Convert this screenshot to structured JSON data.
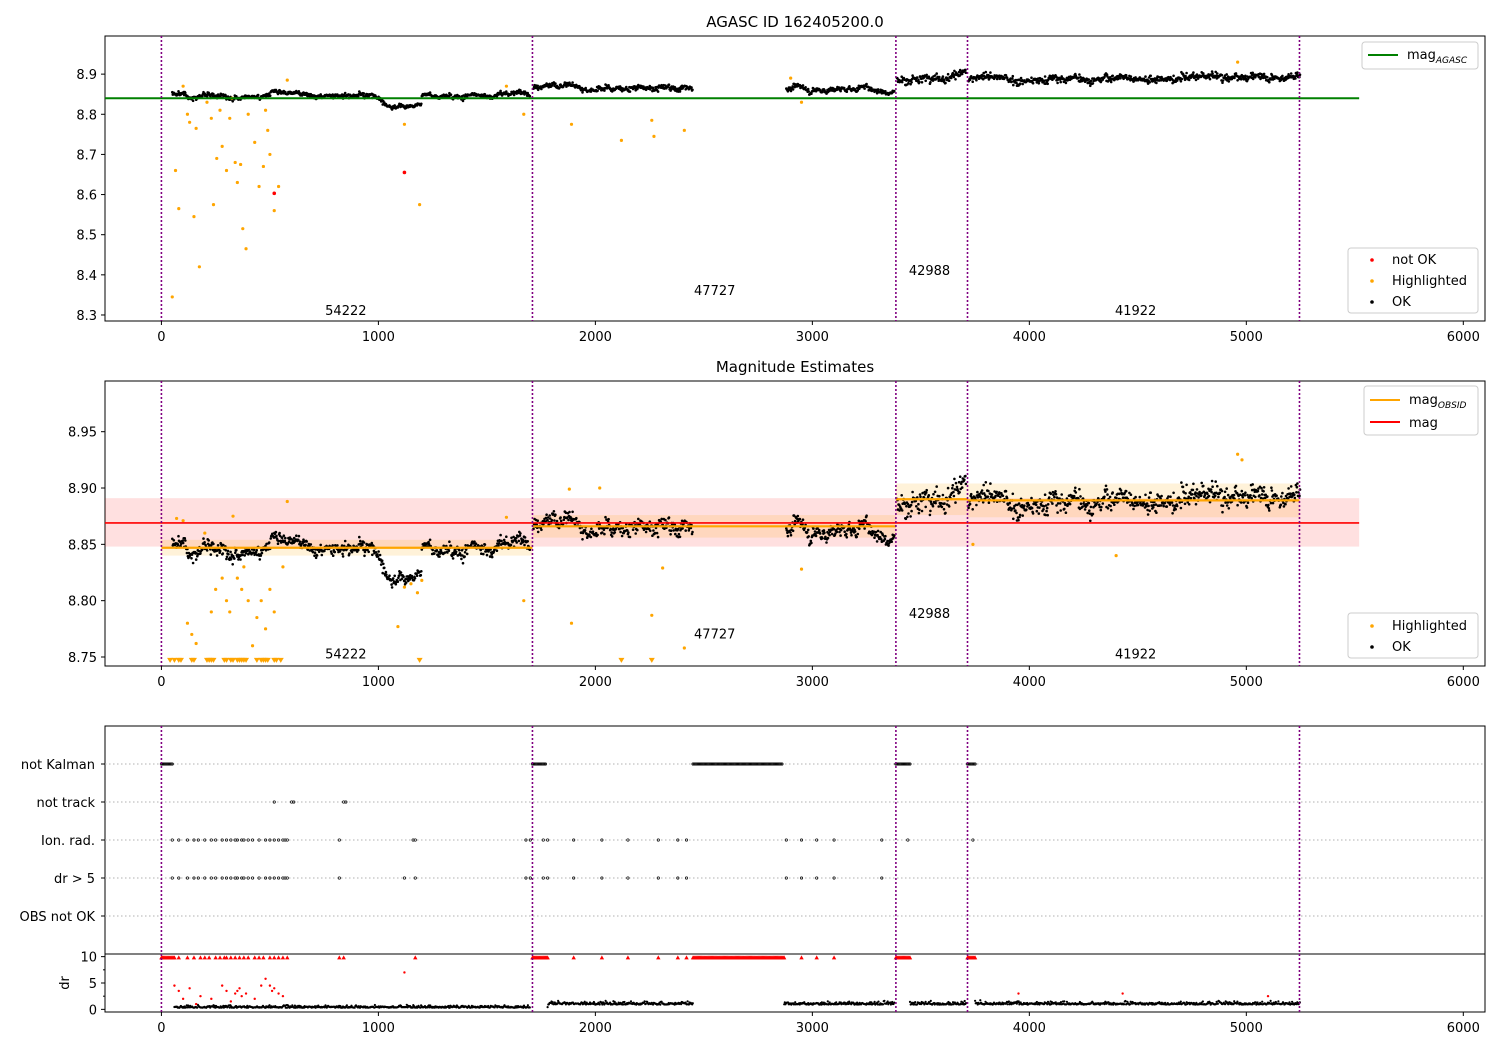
{
  "x_ticks": [
    0,
    1000,
    2000,
    3000,
    4000,
    5000,
    6000
  ],
  "x_range": [
    -260,
    6100
  ],
  "obs_boundaries": [
    0,
    1710,
    3385,
    3715,
    5245
  ],
  "colors": {
    "ok": "#000000",
    "highlighted": "#ffa500",
    "not_ok": "#ff0000",
    "agasc": "#008000",
    "obsid": "#ffa500",
    "mag": "#ff0000",
    "boundary": "#800080"
  },
  "chart_data": [
    {
      "type": "scatter",
      "title": "AGASC ID 162405200.0",
      "ylim": [
        8.285,
        8.995
      ],
      "y_ticks": [
        "8.3",
        "8.4",
        "8.5",
        "8.6",
        "8.7",
        "8.8",
        "8.9"
      ],
      "y_tick_values": [
        8.3,
        8.4,
        8.5,
        8.6,
        8.7,
        8.8,
        8.9
      ],
      "reference_line": {
        "name": "mag_AGASC",
        "value": 8.84,
        "x": [
          -260,
          5520
        ]
      },
      "legend_lines": [
        {
          "label": "mag",
          "sub": "AGASC",
          "color": "#008000"
        }
      ],
      "legend_points": [
        {
          "label": "not OK",
          "color": "#ff0000"
        },
        {
          "label": "Highlighted",
          "color": "#ffa500"
        },
        {
          "label": "OK",
          "color": "#000000"
        }
      ],
      "obsids": [
        {
          "label": "54222",
          "x": 850,
          "y": 8.31
        },
        {
          "label": "47727",
          "x": 2550,
          "y": 8.36
        },
        {
          "label": "42988",
          "x": 3540,
          "y": 8.41
        },
        {
          "label": "41922",
          "x": 4490,
          "y": 8.31
        }
      ],
      "segments": [
        {
          "x": [
            50,
            1020
          ],
          "y": [
            8.852,
            8.848
          ],
          "sd": 0.007
        },
        {
          "x": [
            1020,
            1200
          ],
          "y": [
            8.826,
            8.823
          ],
          "sd": 0.006
        },
        {
          "x": [
            1200,
            1700
          ],
          "y": [
            8.845,
            8.852
          ],
          "sd": 0.007
        },
        {
          "x": [
            1715,
            2450
          ],
          "y": [
            8.868,
            8.866
          ],
          "sd": 0.008
        },
        {
          "x": [
            2880,
            3380
          ],
          "y": [
            8.863,
            8.862
          ],
          "sd": 0.008
        },
        {
          "x": [
            3390,
            3710
          ],
          "y": [
            8.888,
            8.905
          ],
          "sd": 0.014
        },
        {
          "x": [
            3720,
            5250
          ],
          "y": [
            8.885,
            8.895
          ],
          "sd": 0.012
        }
      ],
      "highlighted": [
        [
          50,
          8.345
        ],
        [
          65,
          8.66
        ],
        [
          80,
          8.565
        ],
        [
          100,
          8.87
        ],
        [
          120,
          8.8
        ],
        [
          130,
          8.78
        ],
        [
          150,
          8.545
        ],
        [
          160,
          8.765
        ],
        [
          175,
          8.42
        ],
        [
          210,
          8.83
        ],
        [
          230,
          8.79
        ],
        [
          240,
          8.575
        ],
        [
          255,
          8.69
        ],
        [
          270,
          8.81
        ],
        [
          280,
          8.72
        ],
        [
          300,
          8.66
        ],
        [
          315,
          8.79
        ],
        [
          325,
          8.84
        ],
        [
          340,
          8.68
        ],
        [
          350,
          8.63
        ],
        [
          365,
          8.675
        ],
        [
          375,
          8.515
        ],
        [
          390,
          8.465
        ],
        [
          400,
          8.8
        ],
        [
          430,
          8.73
        ],
        [
          450,
          8.62
        ],
        [
          470,
          8.67
        ],
        [
          480,
          8.81
        ],
        [
          490,
          8.76
        ],
        [
          500,
          8.7
        ],
        [
          520,
          8.56
        ],
        [
          540,
          8.62
        ],
        [
          580,
          8.885
        ],
        [
          1120,
          8.775
        ],
        [
          1190,
          8.575
        ],
        [
          1590,
          8.87
        ],
        [
          1670,
          8.8
        ],
        [
          1890,
          8.775
        ],
        [
          2120,
          8.735
        ],
        [
          2260,
          8.785
        ],
        [
          2270,
          8.745
        ],
        [
          2410,
          8.76
        ],
        [
          2900,
          8.89
        ],
        [
          2950,
          8.83
        ],
        [
          4960,
          8.93
        ]
      ],
      "not_ok": [
        [
          520,
          8.603
        ],
        [
          1120,
          8.655
        ]
      ]
    },
    {
      "type": "scatter",
      "title": "Magnitude Estimates",
      "ylim": [
        8.742,
        8.995
      ],
      "y_ticks": [
        "8.75",
        "8.80",
        "8.85",
        "8.90",
        "8.95"
      ],
      "y_tick_values": [
        8.75,
        8.8,
        8.85,
        8.9,
        8.95
      ],
      "mag_line": {
        "value": 8.869,
        "band": [
          8.848,
          8.891
        ],
        "x": [
          -260,
          5520
        ]
      },
      "obsid_segments": [
        {
          "x": [
            0,
            1710
          ],
          "y": 8.847,
          "band": [
            8.84,
            8.854
          ]
        },
        {
          "x": [
            1710,
            3385
          ],
          "y": 8.866,
          "band": [
            8.856,
            8.876
          ]
        },
        {
          "x": [
            3385,
            3715
          ],
          "y": 8.89,
          "band": [
            8.876,
            8.904
          ]
        },
        {
          "x": [
            3715,
            5245
          ],
          "y": 8.889,
          "band": [
            8.874,
            8.904
          ]
        }
      ],
      "legend_lines": [
        {
          "label": "mag",
          "sub": "OBSID",
          "color": "#ffa500"
        },
        {
          "label": "mag",
          "sub": "",
          "color": "#ff0000"
        }
      ],
      "legend_points": [
        {
          "label": "Highlighted",
          "color": "#ffa500"
        },
        {
          "label": "OK",
          "color": "#000000"
        }
      ],
      "obsids": [
        {
          "label": "54222",
          "x": 850,
          "y": 8.752
        },
        {
          "label": "47727",
          "x": 2550,
          "y": 8.77
        },
        {
          "label": "42988",
          "x": 3540,
          "y": 8.788
        },
        {
          "label": "41922",
          "x": 4490,
          "y": 8.752
        }
      ],
      "highlighted": [
        [
          70,
          8.873
        ],
        [
          100,
          8.871
        ],
        [
          120,
          8.78
        ],
        [
          140,
          8.77
        ],
        [
          160,
          8.762
        ],
        [
          200,
          8.86
        ],
        [
          230,
          8.79
        ],
        [
          250,
          8.81
        ],
        [
          280,
          8.82
        ],
        [
          300,
          8.8
        ],
        [
          315,
          8.79
        ],
        [
          330,
          8.875
        ],
        [
          350,
          8.82
        ],
        [
          370,
          8.81
        ],
        [
          380,
          8.83
        ],
        [
          400,
          8.8
        ],
        [
          420,
          8.76
        ],
        [
          440,
          8.785
        ],
        [
          460,
          8.8
        ],
        [
          480,
          8.775
        ],
        [
          500,
          8.81
        ],
        [
          520,
          8.79
        ],
        [
          560,
          8.83
        ],
        [
          580,
          8.888
        ],
        [
          1090,
          8.777
        ],
        [
          1120,
          8.812
        ],
        [
          1150,
          8.815
        ],
        [
          1180,
          8.807
        ],
        [
          1200,
          8.818
        ],
        [
          1590,
          8.874
        ],
        [
          1670,
          8.8
        ],
        [
          1880,
          8.899
        ],
        [
          1890,
          8.78
        ],
        [
          2020,
          8.9
        ],
        [
          2260,
          8.787
        ],
        [
          2310,
          8.829
        ],
        [
          2410,
          8.758
        ],
        [
          2950,
          8.828
        ],
        [
          3740,
          8.85
        ],
        [
          4400,
          8.84
        ],
        [
          4960,
          8.93
        ],
        [
          4980,
          8.925
        ]
      ],
      "clipped": [
        40,
        60,
        80,
        90,
        140,
        150,
        210,
        220,
        230,
        240,
        290,
        300,
        320,
        330,
        350,
        360,
        370,
        380,
        390,
        440,
        460,
        470,
        480,
        490,
        520,
        530,
        550,
        1190,
        2120,
        2260
      ]
    },
    {
      "type": "scatter",
      "title": "",
      "categories": [
        "not Kalman",
        "not track",
        "Ion. rad.",
        "dr > 5",
        "OBS not OK"
      ],
      "flags": [
        {
          "row": 0,
          "ranges": [
            [
              0,
              50
            ],
            [
              1710,
              1770
            ],
            [
              2450,
              2860
            ],
            [
              3385,
              3450
            ],
            [
              3715,
              3750
            ]
          ],
          "points": []
        },
        {
          "row": 1,
          "ranges": [],
          "points": [
            520,
            600,
            610,
            840,
            850
          ]
        },
        {
          "row": 2,
          "ranges": [],
          "points": [
            50,
            80,
            120,
            150,
            170,
            200,
            230,
            250,
            280,
            300,
            320,
            340,
            350,
            370,
            380,
            400,
            420,
            450,
            480,
            500,
            520,
            540,
            560,
            570,
            580,
            820,
            1160,
            1170,
            1680,
            1700,
            1760,
            1780,
            1900,
            2030,
            2150,
            2290,
            2380,
            2420,
            2880,
            2950,
            3020,
            3100,
            3320,
            3440,
            3740
          ]
        },
        {
          "row": 3,
          "ranges": [],
          "points": [
            50,
            80,
            120,
            150,
            170,
            200,
            230,
            250,
            280,
            300,
            320,
            340,
            350,
            370,
            380,
            400,
            420,
            450,
            480,
            500,
            520,
            540,
            560,
            570,
            580,
            820,
            1120,
            1170,
            1680,
            1700,
            1760,
            1780,
            1900,
            2030,
            2150,
            2290,
            2380,
            2420,
            2880,
            2950,
            3020,
            3100,
            3320
          ]
        },
        {
          "row": 4,
          "ranges": [],
          "points": []
        }
      ]
    },
    {
      "type": "scatter",
      "title": "",
      "ylabel": "dr",
      "ylim": [
        -0.5,
        10.5
      ],
      "y_ticks": [
        "0",
        "5",
        "10"
      ],
      "y_tick_values": [
        0,
        5,
        10
      ],
      "clip_ranges": [
        [
          0,
          60
        ],
        [
          1710,
          1780
        ],
        [
          2450,
          2870
        ],
        [
          3385,
          3450
        ],
        [
          3715,
          3750
        ]
      ],
      "clip_points": [
        80,
        120,
        150,
        180,
        200,
        220,
        250,
        270,
        290,
        300,
        320,
        340,
        360,
        380,
        400,
        430,
        450,
        470,
        500,
        520,
        540,
        560,
        580,
        820,
        840,
        1170,
        1900,
        2030,
        2150,
        2290,
        2380,
        2420,
        2950,
        3020,
        3100
      ],
      "ok_segments": [
        [
          60,
          1700
        ],
        [
          1780,
          2450
        ],
        [
          2870,
          3380
        ],
        [
          3450,
          3710
        ],
        [
          3750,
          5250
        ]
      ],
      "red_points": [
        [
          60,
          4.5
        ],
        [
          80,
          3.5
        ],
        [
          100,
          2.0
        ],
        [
          130,
          4.0
        ],
        [
          160,
          1.0
        ],
        [
          180,
          2.5
        ],
        [
          230,
          2.0
        ],
        [
          280,
          4.5
        ],
        [
          300,
          3.5
        ],
        [
          320,
          1.5
        ],
        [
          340,
          3.0
        ],
        [
          350,
          3.5
        ],
        [
          360,
          4.0
        ],
        [
          370,
          2.5
        ],
        [
          390,
          3.0
        ],
        [
          430,
          2.0
        ],
        [
          460,
          4.5
        ],
        [
          480,
          5.8
        ],
        [
          500,
          4.5
        ],
        [
          510,
          3.5
        ],
        [
          520,
          4.0
        ],
        [
          540,
          3.0
        ],
        [
          560,
          2.5
        ],
        [
          1120,
          7.0
        ],
        [
          3950,
          3.0
        ],
        [
          4430,
          3.0
        ],
        [
          5100,
          2.5
        ]
      ]
    }
  ]
}
